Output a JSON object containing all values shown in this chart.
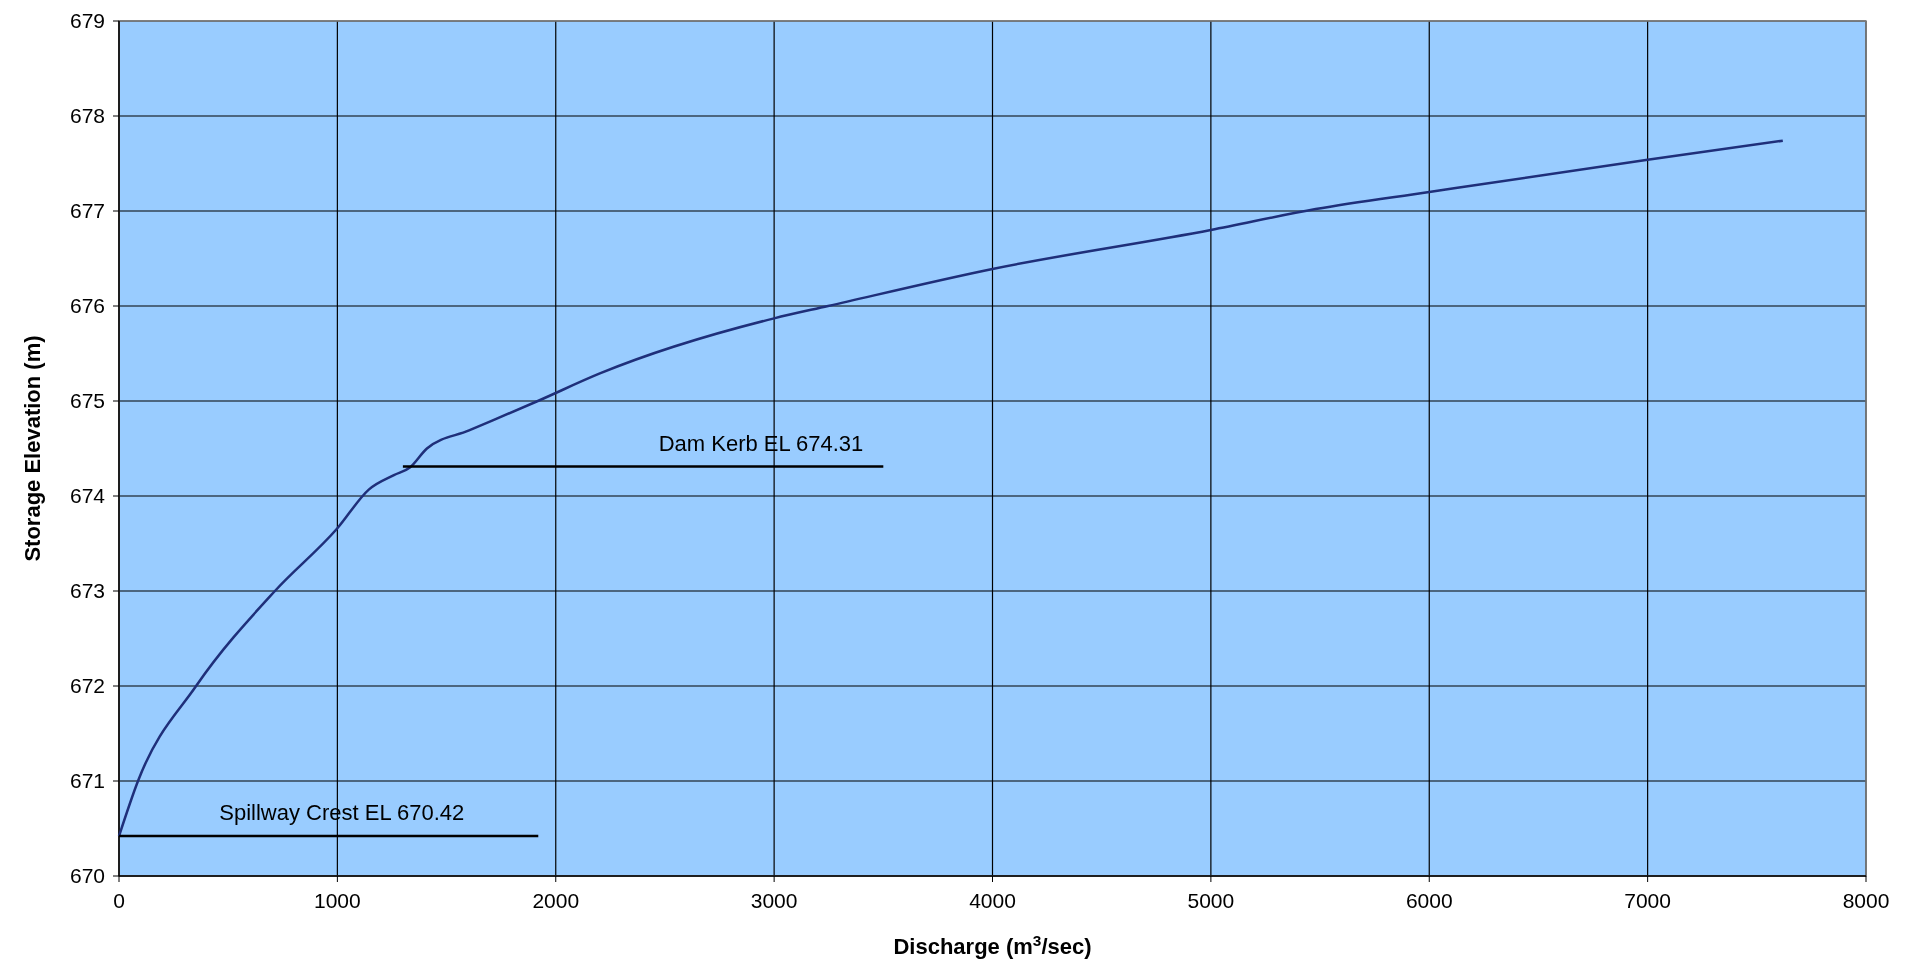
{
  "chart_data": {
    "type": "line",
    "xlabel": "Discharge (m$^{3}$/sec)",
    "ylabel": "Storage Elevation (m)",
    "xlim": [
      0,
      8000
    ],
    "xticks": [
      0,
      1000,
      2000,
      3000,
      4000,
      5000,
      6000,
      7000,
      8000
    ],
    "ylim": [
      670,
      679
    ],
    "yticks": [
      670,
      671,
      672,
      673,
      674,
      675,
      676,
      677,
      678,
      679
    ],
    "grid": true,
    "series": [
      {
        "color": "#1f2f7a",
        "x": [
          0,
          87,
          353,
          714,
          1000,
          1145,
          1259,
          1332,
          1410,
          1603,
          1918,
          2202,
          3000,
          3247,
          4000,
          5000,
          5480,
          6000,
          7000,
          7619
        ],
        "values": [
          670.42,
          671,
          672,
          673,
          673.66,
          674.07,
          674.22,
          674.3,
          674.5,
          674.69,
          675.0,
          675.29,
          675.87,
          676.0,
          676.39,
          676.8,
          677.02,
          677.2,
          677.54,
          677.74
        ]
      },
      {
        "color": "#000000",
        "x": [
          0,
          1920
        ],
        "values": [
          670.42,
          670.42
        ]
      },
      {
        "color": "#000000",
        "x": [
          1300,
          3500
        ],
        "values": [
          674.31,
          674.31
        ]
      }
    ],
    "annotations": [
      {
        "text": "Spillway Crest EL 670.42",
        "x": 1020,
        "y": 670.42
      },
      {
        "text": "Dam Kerb EL 674.31",
        "x": 2940,
        "y": 674.31
      }
    ]
  }
}
